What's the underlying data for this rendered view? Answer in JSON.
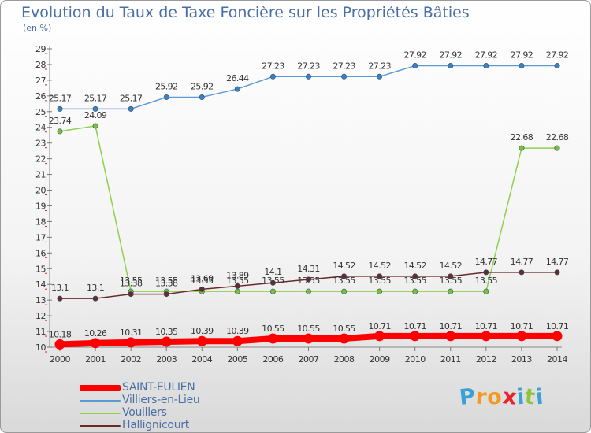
{
  "title": "Evolution du Taux de Taxe Foncière sur les Propriétés Bâties",
  "unit": "(en %)",
  "logo": {
    "letters": [
      "P",
      "r",
      "o",
      "x",
      "i",
      "t",
      "i"
    ],
    "colors": [
      "#3aa0d8",
      "#f39a1e",
      "#f39a1e",
      "#e8212a",
      "#3aa0d8",
      "#8cc63f",
      "#3aa0d8"
    ]
  },
  "chart_data": {
    "type": "line",
    "x": [
      "2000",
      "2001",
      "2002",
      "2003",
      "2004",
      "2005",
      "2006",
      "2007",
      "2008",
      "2009",
      "2010",
      "2011",
      "2012",
      "2013",
      "2014"
    ],
    "ylim": [
      10,
      29
    ],
    "yticks": [
      10,
      11,
      12,
      13,
      14,
      15,
      16,
      17,
      18,
      19,
      20,
      21,
      22,
      23,
      24,
      25,
      26,
      27,
      28,
      29
    ],
    "grid": false,
    "legend_position": "bottom-left",
    "series": [
      {
        "name": "Villiers-en-Lieu",
        "color": "#5b9bd5",
        "marker": "#3d7fbf",
        "width": 1.5,
        "values": [
          25.17,
          25.17,
          25.17,
          25.92,
          25.92,
          26.44,
          27.23,
          27.23,
          27.23,
          27.23,
          27.92,
          27.92,
          27.92,
          27.92,
          27.92
        ],
        "labels": [
          "25.17",
          "25.17",
          "25.17",
          "25.92",
          "25.92",
          "26.44",
          "27.23",
          "27.23",
          "27.23",
          "27.23",
          "27.92",
          "27.92",
          "27.92",
          "27.92",
          "27.92"
        ]
      },
      {
        "name": "Vouillers",
        "color": "#8ed14b",
        "marker": "#7cc03a",
        "width": 1.5,
        "values": [
          23.74,
          24.09,
          13.55,
          13.55,
          13.55,
          13.55,
          13.55,
          13.55,
          13.55,
          13.55,
          13.55,
          13.55,
          13.55,
          22.68,
          22.68
        ],
        "labels": [
          "23.74",
          "24.09",
          "13.55",
          "13.55",
          "13.55",
          "13.55",
          "13.55",
          "13.55",
          "13.55",
          "13.55",
          "13.55",
          "13.55",
          "13.55",
          "22.68",
          "22.68"
        ]
      },
      {
        "name": "Hallignicourt",
        "color": "#6b2a2a",
        "marker": "#6b2a2a",
        "width": 1.5,
        "values": [
          13.1,
          13.1,
          13.38,
          13.38,
          13.69,
          13.89,
          14.1,
          14.31,
          14.52,
          14.52,
          14.52,
          14.52,
          14.77,
          14.77,
          14.77
        ],
        "labels": [
          "13.1",
          "13.1",
          "13.38",
          "13.38",
          "13.69",
          "13.89",
          "14.1",
          "14.31",
          "14.52",
          "14.52",
          "14.52",
          "14.52",
          "14.77",
          "14.77",
          "14.77"
        ]
      },
      {
        "name": "SAINT-EULIEN",
        "color": "#ff0000",
        "marker": "#ff0000",
        "width": 8,
        "values": [
          10.18,
          10.26,
          10.31,
          10.35,
          10.39,
          10.39,
          10.55,
          10.55,
          10.55,
          10.71,
          10.71,
          10.71,
          10.71,
          10.71,
          10.71
        ],
        "labels": [
          "10.18",
          "10.26",
          "10.31",
          "10.35",
          "10.39",
          "10.39",
          "10.55",
          "10.55",
          "10.55",
          "10.71",
          "10.71",
          "10.71",
          "10.71",
          "10.71",
          "10.71"
        ]
      }
    ],
    "legend_order": [
      "SAINT-EULIEN",
      "Villiers-en-Lieu",
      "Vouillers",
      "Hallignicourt"
    ]
  }
}
